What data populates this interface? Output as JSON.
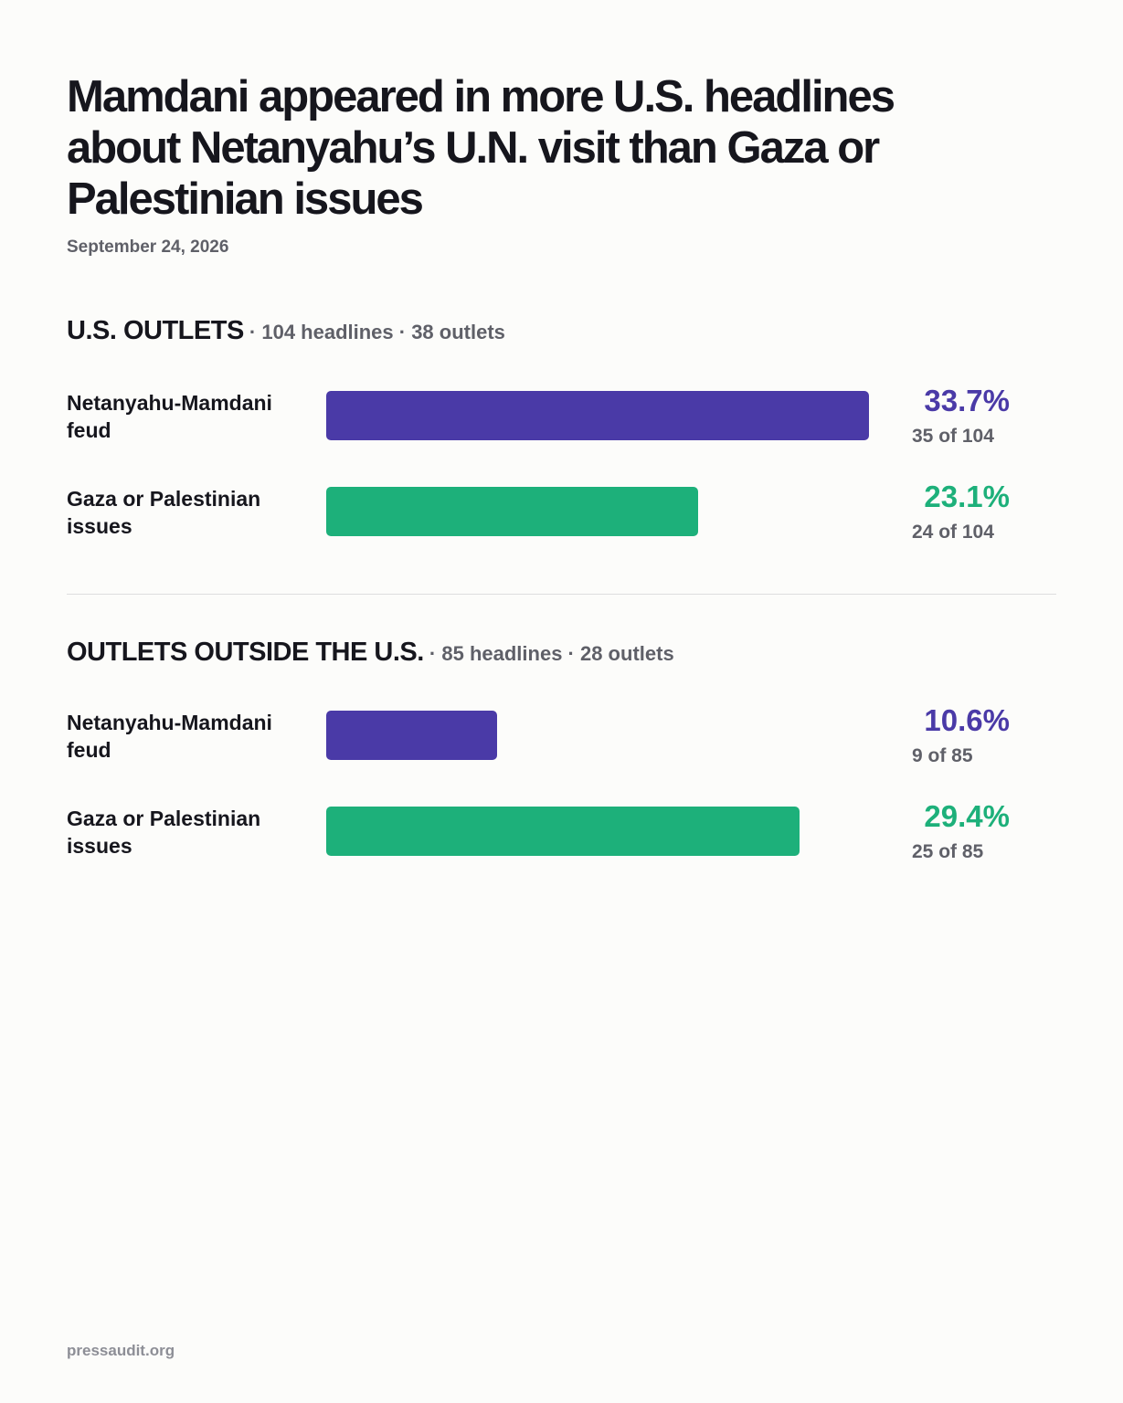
{
  "title": "Mamdani appeared in more U.S. headlines about Netanyahu’s U.N. visit than Gaza or Palestinian issues",
  "date": "September 24, 2026",
  "footer": "pressaudit.org",
  "colors": {
    "feud": "#4a3aa7",
    "gaza": "#1db07a"
  },
  "chart_data": [
    {
      "type": "bar",
      "orientation": "horizontal",
      "section_title": "U.S. OUTLETS",
      "section_meta": " · 104 headlines · 38 outlets",
      "xlim": [
        0,
        33.7
      ],
      "rows": [
        {
          "label": "Netanyahu-Mamdani feud",
          "value": 33.7,
          "pct_label": "33.7%",
          "count_label": "35 of 104",
          "color": "#4a3aa7"
        },
        {
          "label": "Gaza or Palestinian issues",
          "value": 23.1,
          "pct_label": "23.1%",
          "count_label": "24 of 104",
          "color": "#1db07a"
        }
      ]
    },
    {
      "type": "bar",
      "orientation": "horizontal",
      "section_title": "OUTLETS OUTSIDE THE U.S.",
      "section_meta": " · 85 headlines · 28 outlets",
      "xlim": [
        0,
        33.7
      ],
      "rows": [
        {
          "label": "Netanyahu-Mamdani feud",
          "value": 10.6,
          "pct_label": "10.6%",
          "count_label": "9 of 85",
          "color": "#4a3aa7"
        },
        {
          "label": "Gaza or Palestinian issues",
          "value": 29.4,
          "pct_label": "29.4%",
          "count_label": "25 of 85",
          "color": "#1db07a"
        }
      ]
    }
  ]
}
